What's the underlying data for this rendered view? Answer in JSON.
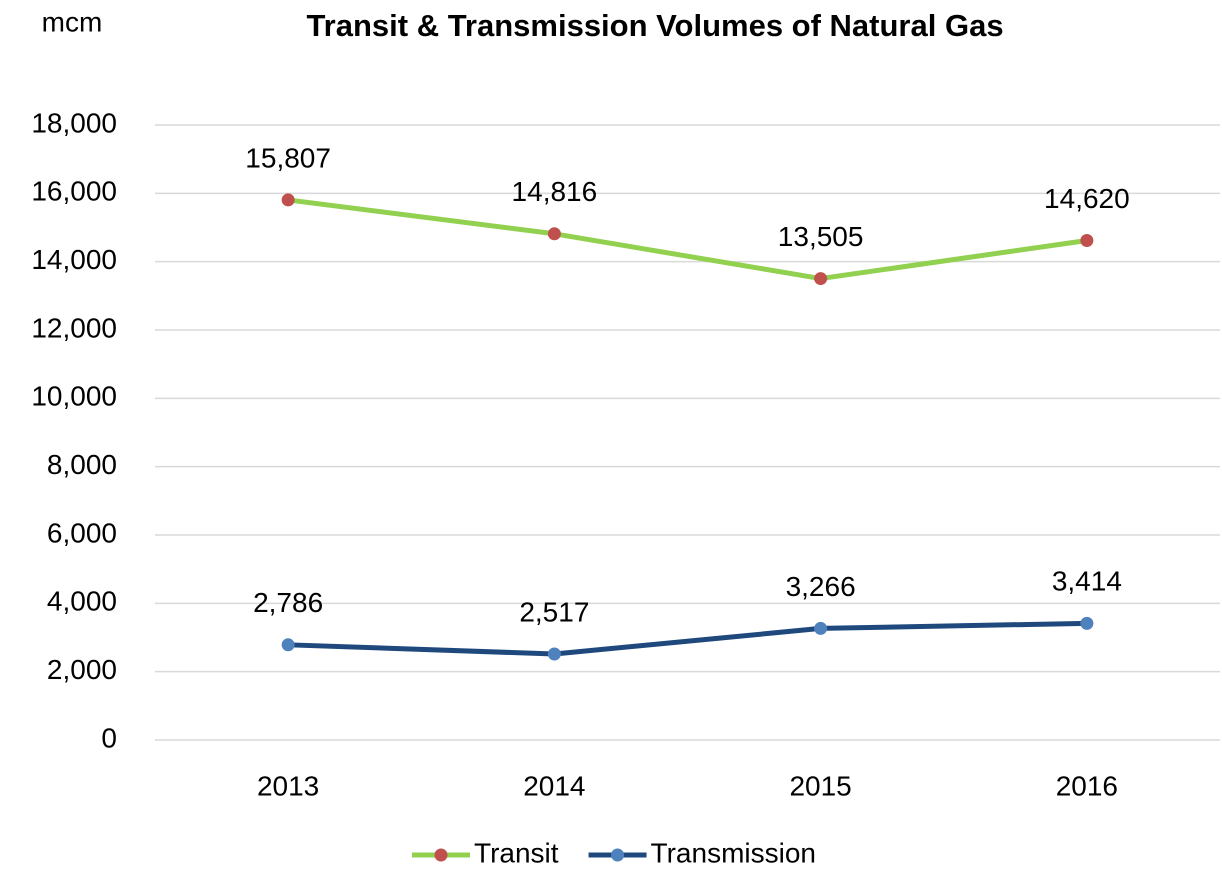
{
  "chart_data": {
    "type": "line",
    "title": "Transit & Transmission Volumes of Natural Gas",
    "y_label": "mcm",
    "categories": [
      "2013",
      "2014",
      "2015",
      "2016"
    ],
    "series": [
      {
        "name": "Transit",
        "color": "#92d050",
        "marker_color": "#c0504d",
        "values": [
          15807,
          14816,
          13505,
          14620
        ],
        "value_labels": [
          "15,807",
          "14,816",
          "13,505",
          "14,620"
        ]
      },
      {
        "name": "Transmission",
        "color": "#1f497d",
        "marker_color": "#4f81bd",
        "values": [
          2786,
          2517,
          3266,
          3414
        ],
        "value_labels": [
          "2,786",
          "2,517",
          "3,266",
          "3,414"
        ]
      }
    ],
    "ylim": [
      0,
      18000
    ],
    "yticks": [
      0,
      {
        "value": 2000,
        "label": "2,000"
      },
      {
        "value": 4000,
        "label": "4,000"
      },
      {
        "value": 6000,
        "label": "6,000"
      },
      {
        "value": 8000,
        "label": "8,000"
      },
      {
        "value": 10000,
        "label": "10,000"
      },
      {
        "value": 12000,
        "label": "12,000"
      },
      {
        "value": 14000,
        "label": "14,000"
      },
      {
        "value": 16000,
        "label": "16,000"
      },
      {
        "value": 18000,
        "label": "18,000"
      }
    ],
    "grid": true,
    "legend": "bottom"
  }
}
